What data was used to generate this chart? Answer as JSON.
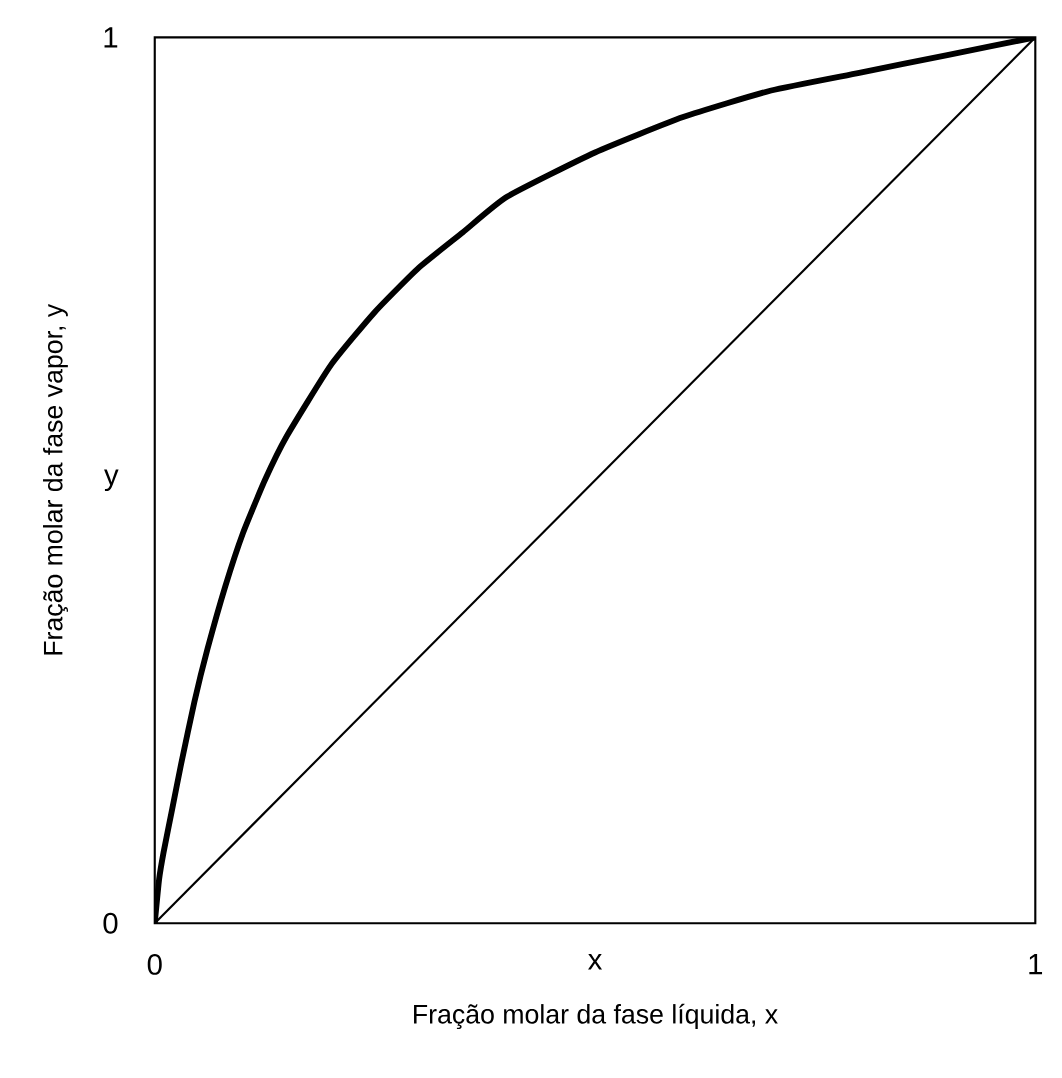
{
  "chart_data": {
    "type": "line",
    "xlabel": "Fração molar da fase líquida, x",
    "ylabel": "Fração molar da fase vapor, y",
    "xlim": [
      0,
      1
    ],
    "ylim": [
      0,
      1
    ],
    "xticks": [
      0,
      {
        "value": 0.5,
        "label": "x"
      },
      1
    ],
    "yticks": [
      0,
      {
        "value": 0.5,
        "label": "y"
      },
      1
    ],
    "grid": false,
    "marker": "none",
    "line_style": "solid",
    "series": [
      {
        "color": "#000000",
        "x": [
          0,
          0.005,
          0.01,
          0.02,
          0.03,
          0.045,
          0.06,
          0.08,
          0.1,
          0.125,
          0.15,
          0.2,
          0.25,
          0.3,
          0.35,
          0.4,
          0.5,
          0.6,
          0.7,
          0.8,
          0.9,
          1
        ],
        "values": [
          0,
          0.05,
          0.08,
          0.13,
          0.18,
          0.25,
          0.31,
          0.38,
          0.44,
          0.5,
          0.55,
          0.63,
          0.69,
          0.74,
          0.78,
          0.82,
          0.87,
          0.91,
          0.94,
          0.96,
          0.98,
          1
        ]
      },
      {
        "color": "#000000",
        "x": [
          0,
          1
        ],
        "values": [
          0,
          1
        ]
      }
    ]
  }
}
